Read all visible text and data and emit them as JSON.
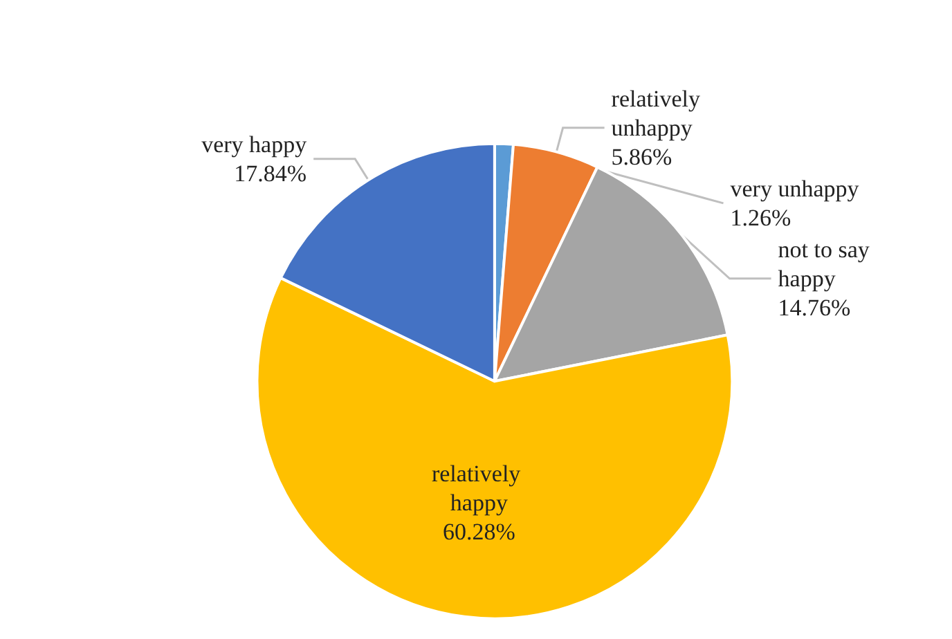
{
  "chart_data": {
    "type": "pie",
    "categories": [
      "very unhappy",
      "relatively unhappy",
      "not to say happy",
      "relatively happy",
      "very happy"
    ],
    "values": [
      1.26,
      5.86,
      14.76,
      60.28,
      17.84
    ],
    "colors": [
      "#5b9bd5",
      "#ed7d31",
      "#a5a5a5",
      "#ffc000",
      "#4472c4"
    ],
    "value_labels": [
      "1.26%",
      "5.86%",
      "14.76%",
      "60.28%",
      "17.84%"
    ]
  }
}
